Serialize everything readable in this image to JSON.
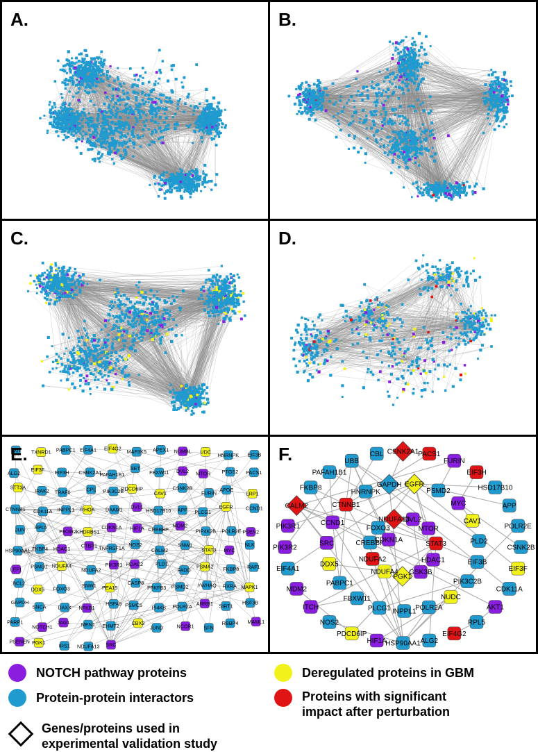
{
  "colors": {
    "notch": "#8a1ee0",
    "interactor": "#1f9bd0",
    "deregulated": "#f2f21a",
    "significant": "#e01414",
    "edge": "#888888"
  },
  "panels": [
    {
      "letter": "A."
    },
    {
      "letter": "B."
    },
    {
      "letter": "C."
    },
    {
      "letter": "D."
    },
    {
      "letter": "E."
    },
    {
      "letter": "F."
    }
  ],
  "panel_e_nodes": [
    {
      "label": "TXN",
      "t": "i"
    },
    {
      "label": "TXNRD1",
      "t": "d"
    },
    {
      "label": "PABPC1",
      "t": "i"
    },
    {
      "label": "EIF4A1",
      "t": "i"
    },
    {
      "label": "EIF4G2",
      "t": "d"
    },
    {
      "label": "MAP3K5",
      "t": "i"
    },
    {
      "label": "APEX1",
      "t": "i"
    },
    {
      "label": "NUMBL",
      "t": "n"
    },
    {
      "label": "UDC",
      "t": "d"
    },
    {
      "label": "HNRNPK",
      "t": "i"
    },
    {
      "label": "EIF3B",
      "t": "i"
    },
    {
      "label": "ALG2",
      "t": "i"
    },
    {
      "label": "EIF3F",
      "t": "d"
    },
    {
      "label": "EIF3H",
      "t": "i"
    },
    {
      "label": "CSNK2A1",
      "t": "i"
    },
    {
      "label": "PAFAH1B1",
      "t": "i"
    },
    {
      "label": "SET",
      "t": "i"
    },
    {
      "label": "FBXW11",
      "t": "i"
    },
    {
      "label": "DVL2",
      "t": "n"
    },
    {
      "label": "MTOR",
      "t": "n"
    },
    {
      "label": "PTGS2",
      "t": "i"
    },
    {
      "label": "PACS1",
      "t": "i"
    },
    {
      "label": "STT3A",
      "t": "d"
    },
    {
      "label": "IRAK2",
      "t": "i"
    },
    {
      "label": "TRAF6",
      "t": "i"
    },
    {
      "label": "CPL",
      "t": "i"
    },
    {
      "label": "PIK3C2B",
      "t": "i"
    },
    {
      "label": "PDCD6IP",
      "t": "d"
    },
    {
      "label": "CAV1",
      "t": "d"
    },
    {
      "label": "CSNK2B",
      "t": "i"
    },
    {
      "label": "FURIN",
      "t": "i"
    },
    {
      "label": "APOE",
      "t": "i"
    },
    {
      "label": "LRP1",
      "t": "d"
    },
    {
      "label": "CTNNB1",
      "t": "i"
    },
    {
      "label": "CDK11A",
      "t": "i"
    },
    {
      "label": "INPPL1",
      "t": "i"
    },
    {
      "label": "RHOA",
      "t": "d"
    },
    {
      "label": "DAAM1",
      "t": "i"
    },
    {
      "label": "DVL1",
      "t": "n"
    },
    {
      "label": "HSD17B10",
      "t": "i"
    },
    {
      "label": "APP",
      "t": "i"
    },
    {
      "label": "PLCG1",
      "t": "i"
    },
    {
      "label": "EGFR",
      "t": "d"
    },
    {
      "label": "CCND1",
      "t": "i"
    },
    {
      "label": "JUN",
      "t": "i"
    },
    {
      "label": "RPL5",
      "t": "i"
    },
    {
      "label": "PIK3R2",
      "t": "n"
    },
    {
      "label": "KHDRBS1",
      "t": "d"
    },
    {
      "label": "CDKN1A",
      "t": "n"
    },
    {
      "label": "HIF1A",
      "t": "n"
    },
    {
      "label": "CREBBP",
      "t": "i"
    },
    {
      "label": "MDM2",
      "t": "n"
    },
    {
      "label": "PIP4K2B",
      "t": "i"
    },
    {
      "label": "POLR2E",
      "t": "i"
    },
    {
      "label": "PSEN2",
      "t": "n"
    },
    {
      "label": "HSP90AA1",
      "t": "i"
    },
    {
      "label": "FKBP4",
      "t": "i"
    },
    {
      "label": "HDAC1",
      "t": "n"
    },
    {
      "label": "CTBP1",
      "t": "n"
    },
    {
      "label": "TNFRSF1A",
      "t": "i"
    },
    {
      "label": "NOS2",
      "t": "i"
    },
    {
      "label": "CALM2",
      "t": "i"
    },
    {
      "label": "SNW1",
      "t": "i"
    },
    {
      "label": "STAT3",
      "t": "d"
    },
    {
      "label": "MYC",
      "t": "n"
    },
    {
      "label": "NLK",
      "t": "i"
    },
    {
      "label": "LEF1",
      "t": "n"
    },
    {
      "label": "PSMD1",
      "t": "i"
    },
    {
      "label": "NDUFA4",
      "t": "d"
    },
    {
      "label": "NDUFA2",
      "t": "i"
    },
    {
      "label": "PIK3R1",
      "t": "n"
    },
    {
      "label": "HDAC2",
      "t": "n"
    },
    {
      "label": "PLD1",
      "t": "i"
    },
    {
      "label": "FADD",
      "t": "i"
    },
    {
      "label": "PSMA2",
      "t": "d"
    },
    {
      "label": "FKBP8",
      "t": "i"
    },
    {
      "label": "RAF1",
      "t": "i"
    },
    {
      "label": "BCL2",
      "t": "i"
    },
    {
      "label": "DDX5",
      "t": "d"
    },
    {
      "label": "FOXO3",
      "t": "i"
    },
    {
      "label": "SNW1",
      "t": "i"
    },
    {
      "label": "PEA15",
      "t": "d"
    },
    {
      "label": "CASP8",
      "t": "i"
    },
    {
      "label": "PFKFB3",
      "t": "i"
    },
    {
      "label": "PSMD2",
      "t": "i"
    },
    {
      "label": "YWHAQ",
      "t": "i"
    },
    {
      "label": "RXRA",
      "t": "i"
    },
    {
      "label": "MAPK1",
      "t": "d"
    },
    {
      "label": "GAPDH",
      "t": "i"
    },
    {
      "label": "SNCA",
      "t": "i"
    },
    {
      "label": "DAXX",
      "t": "i"
    },
    {
      "label": "NFKB1",
      "t": "n"
    },
    {
      "label": "HSPA8",
      "t": "i"
    },
    {
      "label": "PSMC5",
      "t": "i"
    },
    {
      "label": "PI4KB",
      "t": "i"
    },
    {
      "label": "POLR2A",
      "t": "i"
    },
    {
      "label": "ARRB1",
      "t": "n"
    },
    {
      "label": "SIRT1",
      "t": "i"
    },
    {
      "label": "HSF3B",
      "t": "i"
    },
    {
      "label": "PARP1",
      "t": "i"
    },
    {
      "label": "NOTCH1",
      "t": "n"
    },
    {
      "label": "JAG1",
      "t": "n"
    },
    {
      "label": "MEN1",
      "t": "i"
    },
    {
      "label": "EHMT2",
      "t": "i"
    },
    {
      "label": "CBX3",
      "t": "d"
    },
    {
      "label": "JUND",
      "t": "i"
    },
    {
      "label": "NCOR1",
      "t": "n"
    },
    {
      "label": "SFN",
      "t": "i"
    },
    {
      "label": "RBBP4",
      "t": "i"
    },
    {
      "label": "MAML1",
      "t": "n"
    },
    {
      "label": "PSENEN",
      "t": "n"
    },
    {
      "label": "PGK1",
      "t": "d"
    },
    {
      "label": "IRS1",
      "t": "i"
    },
    {
      "label": "NDUFA13",
      "t": "i"
    },
    {
      "label": "SRC",
      "t": "n"
    }
  ],
  "panel_f_nodes": [
    {
      "label": "CSNK2A1",
      "t": "s",
      "d": true
    },
    {
      "label": "PACS1",
      "t": "s"
    },
    {
      "label": "FURIN",
      "t": "n"
    },
    {
      "label": "EIF3H",
      "t": "s"
    },
    {
      "label": "HSD17B10",
      "t": "i"
    },
    {
      "label": "APP",
      "t": "i"
    },
    {
      "label": "POLR2E",
      "t": "i"
    },
    {
      "label": "CSNK2B",
      "t": "i"
    },
    {
      "label": "EIF3F",
      "t": "d"
    },
    {
      "label": "CDK11A",
      "t": "i"
    },
    {
      "label": "AKT1",
      "t": "n"
    },
    {
      "label": "RPL5",
      "t": "i"
    },
    {
      "label": "EIF4G2",
      "t": "s"
    },
    {
      "label": "ALG2",
      "t": "i"
    },
    {
      "label": "HSP90AA1",
      "t": "i"
    },
    {
      "label": "HIF1A",
      "t": "n"
    },
    {
      "label": "PDCD6IP",
      "t": "d"
    },
    {
      "label": "NOS2",
      "t": "i"
    },
    {
      "label": "ITCH",
      "t": "n"
    },
    {
      "label": "MDM2",
      "t": "n"
    },
    {
      "label": "EIF4A1",
      "t": "i"
    },
    {
      "label": "PIK3R2",
      "t": "n"
    },
    {
      "label": "PIK3R1",
      "t": "n"
    },
    {
      "label": "CALM2",
      "t": "s",
      "d": true
    },
    {
      "label": "FKBP8",
      "t": "i"
    },
    {
      "label": "PAFAH1B1",
      "t": "i"
    },
    {
      "label": "UBB",
      "t": "i"
    },
    {
      "label": "CBL",
      "t": "i"
    },
    {
      "label": "EGFR",
      "t": "d",
      "d": true
    },
    {
      "label": "PSMD2",
      "t": "i"
    },
    {
      "label": "MYC",
      "t": "n"
    },
    {
      "label": "CAV1",
      "t": "d"
    },
    {
      "label": "PLD2",
      "t": "i"
    },
    {
      "label": "EIF3B",
      "t": "i"
    },
    {
      "label": "PIK3C2B",
      "t": "i"
    },
    {
      "label": "NUDC",
      "t": "d"
    },
    {
      "label": "POLR2A",
      "t": "i"
    },
    {
      "label": "INPPL1",
      "t": "i"
    },
    {
      "label": "PLCG1",
      "t": "i"
    },
    {
      "label": "FBXW11",
      "t": "i"
    },
    {
      "label": "PABPC1",
      "t": "i"
    },
    {
      "label": "DDX5",
      "t": "d"
    },
    {
      "label": "SRC",
      "t": "n"
    },
    {
      "label": "CCND1",
      "t": "n"
    },
    {
      "label": "CTNNB1",
      "t": "s"
    },
    {
      "label": "HNRNPK",
      "t": "i"
    },
    {
      "label": "GAPDH",
      "t": "i",
      "d": true
    },
    {
      "label": "DVL2",
      "t": "n"
    },
    {
      "label": "MTOR",
      "t": "n"
    },
    {
      "label": "STAT3",
      "t": "s"
    },
    {
      "label": "HDAC1",
      "t": "n"
    },
    {
      "label": "GSK3B",
      "t": "n"
    },
    {
      "label": "PGK1",
      "t": "d",
      "d": true
    },
    {
      "label": "NDUFA4",
      "t": "d"
    },
    {
      "label": "NDUFA2",
      "t": "s"
    },
    {
      "label": "CREBBP",
      "t": "i"
    },
    {
      "label": "FOXO3",
      "t": "i"
    },
    {
      "label": "NDUFA13",
      "t": "s",
      "d": true
    },
    {
      "label": "CDKN1A",
      "t": "n"
    }
  ],
  "legend": {
    "notch": "NOTCH pathway proteins",
    "deregulated": "Deregulated proteins in GBM",
    "interactors": "Protein-protein interactors",
    "significant_line1": "Proteins with significant",
    "significant_line2": "impact after perturbation",
    "validation_line1": "Genes/proteins used in",
    "validation_line2": "experimental validation study"
  }
}
